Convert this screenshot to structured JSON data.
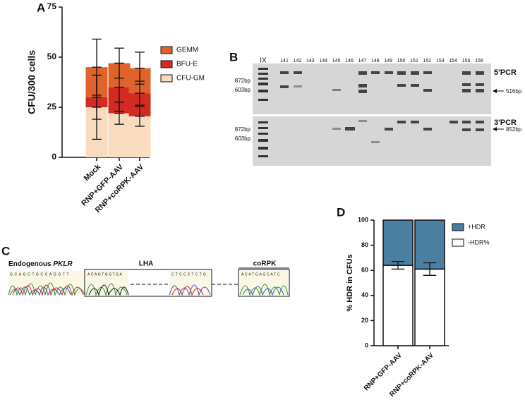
{
  "panel_labels": [
    "A",
    "B",
    "C",
    "D"
  ],
  "chart_data": [
    {
      "type": "stacked_bar",
      "y_label": "CFU/300 cells",
      "categories": [
        "Mock",
        "RNP+GFP-AAV",
        "RNP+coRPK-AAV"
      ],
      "series": [
        {
          "name": "CFU-GM",
          "color": "#f9dcc0",
          "values": [
            25,
            22,
            20.5
          ],
          "errors": [
            16,
            5.5,
            5
          ]
        },
        {
          "name": "BFU-E",
          "color": "#d32b22",
          "values": [
            5,
            13,
            11.5
          ],
          "errors": [
            11,
            12,
            6
          ]
        },
        {
          "name": "GEMM",
          "color": "#e0632b",
          "values": [
            15,
            12,
            12.5
          ],
          "errors": [
            14,
            7.5,
            8
          ]
        }
      ],
      "ylim": [
        0,
        75
      ],
      "yticks": [
        0,
        25,
        50,
        75
      ],
      "legend": "right"
    },
    {
      "type": "stacked_bar",
      "y_label": "% HDR in CFUs",
      "categories": [
        "RNP+GFP-AAV",
        "RNP+coRPK-AAV"
      ],
      "series": [
        {
          "name": "-HDR%",
          "color": "#ffffff",
          "values": [
            64,
            61
          ],
          "errors": [
            3,
            5
          ]
        },
        {
          "name": "+HDR",
          "color": "#4a7f9f",
          "values": [
            36,
            39
          ]
        }
      ],
      "ylim": [
        0,
        100
      ],
      "yticks": [
        0,
        20,
        40,
        60,
        80,
        100
      ],
      "legend": "right"
    }
  ],
  "gel": {
    "lanes": [
      "IX",
      "141",
      "142",
      "143",
      "144",
      "145",
      "146",
      "147",
      "148",
      "149",
      "150",
      "151",
      "152",
      "153",
      "154",
      "155",
      "156"
    ],
    "top_title": "5'PCR",
    "bottom_title": "3'PCR",
    "ladder_top": [
      "872bp",
      "603bp"
    ],
    "ladder_bottom": [
      "872bp",
      "603bp"
    ],
    "top_band": "516bp",
    "bottom_band": "852bp"
  },
  "chromatogram": {
    "endogenous": "Endogenous",
    "gene": "PKLR",
    "lha": "LHA",
    "corpk": "coRPK",
    "seq1": "GCAGCTGCCAGGTT",
    "seq2": "ACAGTGGTGA",
    "seq3": "CTCCCTCTG",
    "seq4": "ACATGAGCATC"
  }
}
